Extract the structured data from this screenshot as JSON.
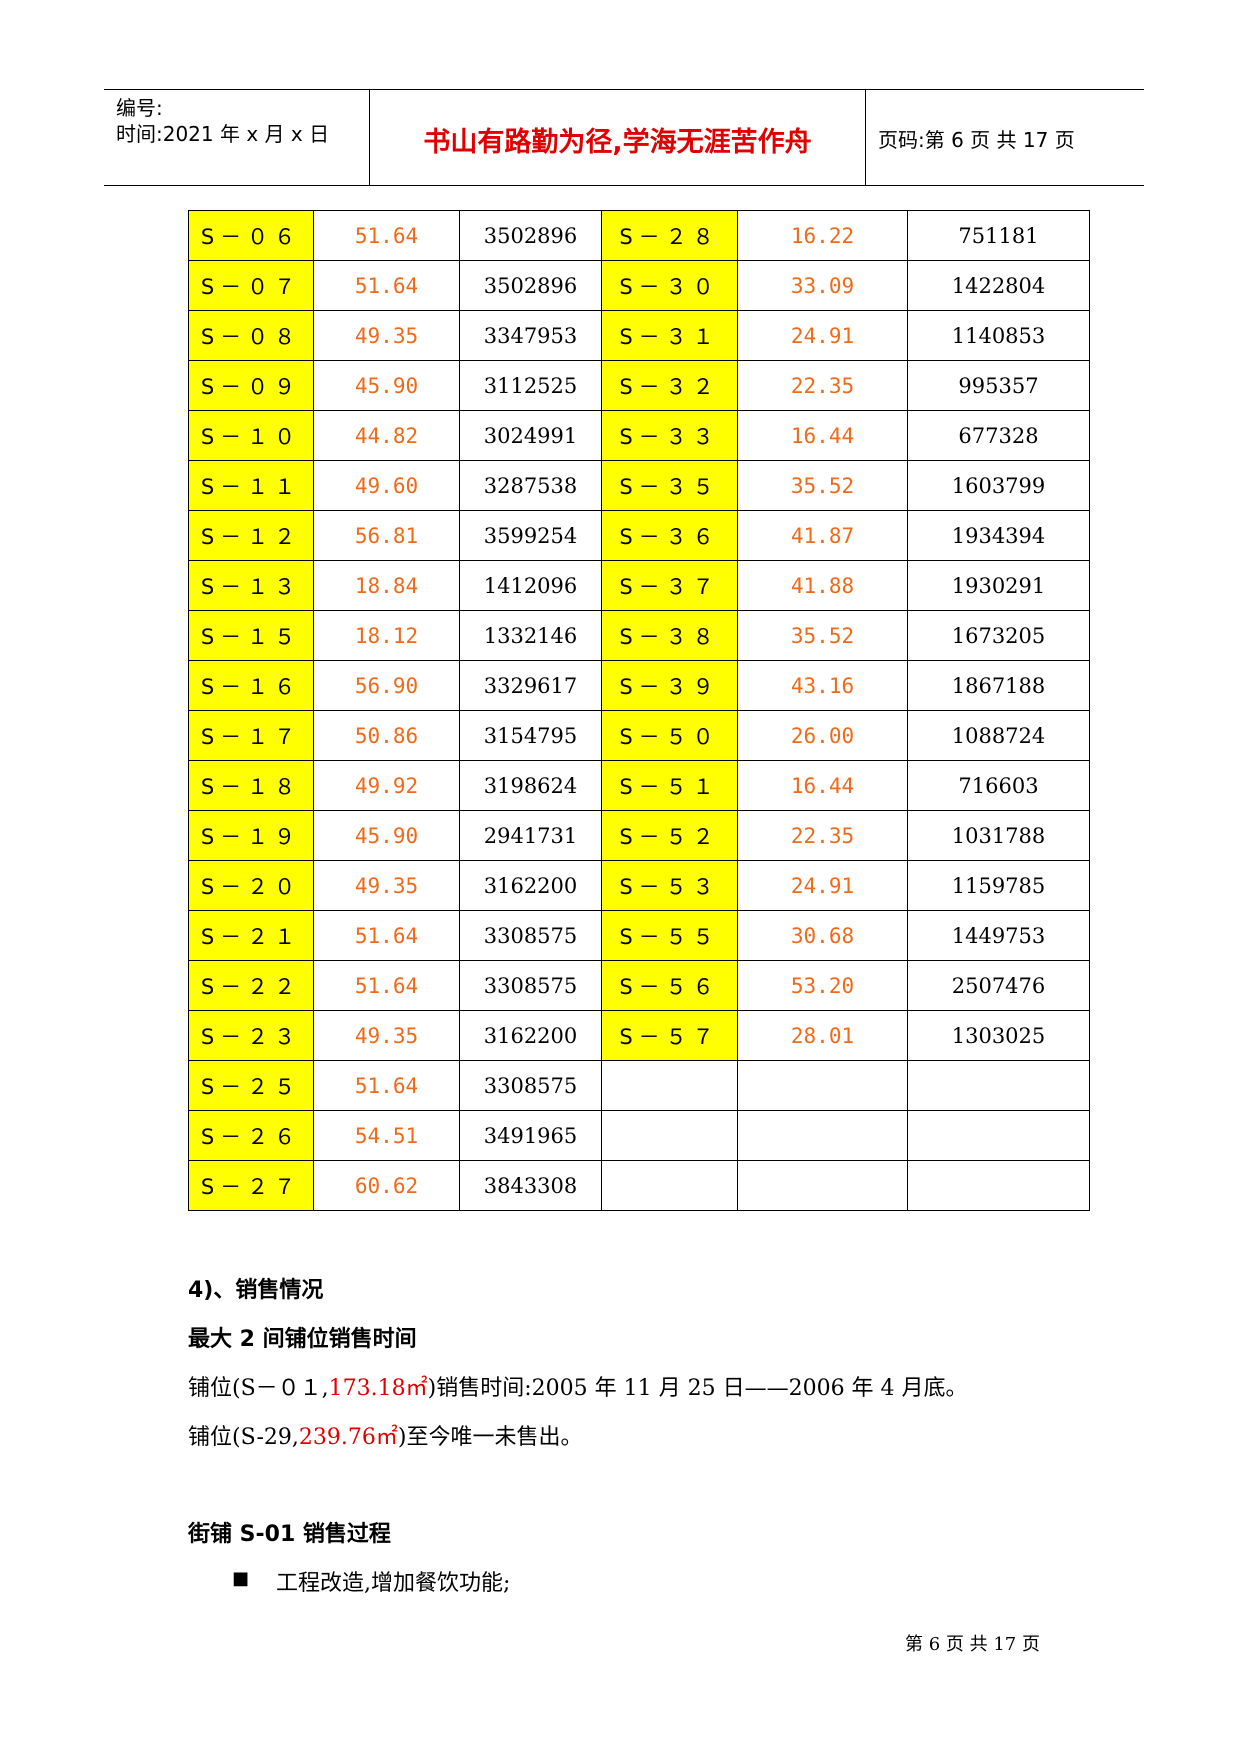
{
  "header": {
    "number_label": "编号:",
    "time_label": "时间:2021 年 x 月 x 日",
    "motto": "书山有路勤为径,学海无涯苦作舟",
    "page_label": "页码:第 6 页  共 17 页"
  },
  "table": {
    "rows": [
      {
        "c1": "S－０６",
        "a1": "51.64",
        "p1": "3502896",
        "c2": "S－２８",
        "a2": "16.22",
        "p2": "751181"
      },
      {
        "c1": "S－０７",
        "a1": "51.64",
        "p1": "3502896",
        "c2": "S－３０",
        "a2": "33.09",
        "p2": "1422804"
      },
      {
        "c1": "S－０８",
        "a1": "49.35",
        "p1": "3347953",
        "c2": "S－３１",
        "a2": "24.91",
        "p2": "1140853"
      },
      {
        "c1": "S－０９",
        "a1": "45.90",
        "p1": "3112525",
        "c2": "S－３２",
        "a2": "22.35",
        "p2": "995357"
      },
      {
        "c1": "S－１０",
        "a1": "44.82",
        "p1": "3024991",
        "c2": "S－３３",
        "a2": "16.44",
        "p2": "677328"
      },
      {
        "c1": "S－１１",
        "a1": "49.60",
        "p1": "3287538",
        "c2": "S－３５",
        "a2": "35.52",
        "p2": "1603799"
      },
      {
        "c1": "S－１２",
        "a1": "56.81",
        "p1": "3599254",
        "c2": "S－３６",
        "a2": "41.87",
        "p2": "1934394"
      },
      {
        "c1": "S－１３",
        "a1": "18.84",
        "p1": "1412096",
        "c2": "S－３７",
        "a2": "41.88",
        "p2": "1930291"
      },
      {
        "c1": "S－１５",
        "a1": "18.12",
        "p1": "1332146",
        "c2": "S－３８",
        "a2": "35.52",
        "p2": "1673205"
      },
      {
        "c1": "S－１６",
        "a1": "56.90",
        "p1": "3329617",
        "c2": "S－３９",
        "a2": "43.16",
        "p2": "1867188"
      },
      {
        "c1": "S－１７",
        "a1": "50.86",
        "p1": "3154795",
        "c2": "S－５０",
        "a2": "26.00",
        "p2": "1088724"
      },
      {
        "c1": "S－１８",
        "a1": "49.92",
        "p1": "3198624",
        "c2": "S－５１",
        "a2": "16.44",
        "p2": "716603"
      },
      {
        "c1": "S－１９",
        "a1": "45.90",
        "p1": "2941731",
        "c2": "S－５２",
        "a2": "22.35",
        "p2": "1031788"
      },
      {
        "c1": "S－２０",
        "a1": "49.35",
        "p1": "3162200",
        "c2": "S－５３",
        "a2": "24.91",
        "p2": "1159785"
      },
      {
        "c1": "S－２１",
        "a1": "51.64",
        "p1": "3308575",
        "c2": "S－５５",
        "a2": "30.68",
        "p2": "1449753"
      },
      {
        "c1": "S－２２",
        "a1": "51.64",
        "p1": "3308575",
        "c2": "S－５６",
        "a2": "53.20",
        "p2": "2507476"
      },
      {
        "c1": "S－２３",
        "a1": "49.35",
        "p1": "3162200",
        "c2": "S－５７",
        "a2": "28.01",
        "p2": "1303025"
      },
      {
        "c1": "S－２５",
        "a1": "51.64",
        "p1": "3308575",
        "c2": "",
        "a2": "",
        "p2": ""
      },
      {
        "c1": "S－２６",
        "a1": "54.51",
        "p1": "3491965",
        "c2": "",
        "a2": "",
        "p2": ""
      },
      {
        "c1": "S－２７",
        "a1": "60.62",
        "p1": "3843308",
        "c2": "",
        "a2": "",
        "p2": ""
      }
    ]
  },
  "section": {
    "heading": "4)、销售情况",
    "subheading": "最大 2 间铺位销售时间",
    "line1_prefix": "铺位(S－０１,",
    "line1_area": "173.18㎡",
    "line1_suffix": ")销售时间:2005 年 11 月 25 日——2006 年 4 月底。",
    "line2_prefix": "铺位(S-29,",
    "line2_area": "239.76㎡",
    "line2_suffix": ")至今唯一未售出。",
    "subheading2": "街铺 S-01 销售过程",
    "bullet1": "工程改造,增加餐饮功能;"
  },
  "footer": {
    "text": "第 6 页 共 17 页"
  }
}
